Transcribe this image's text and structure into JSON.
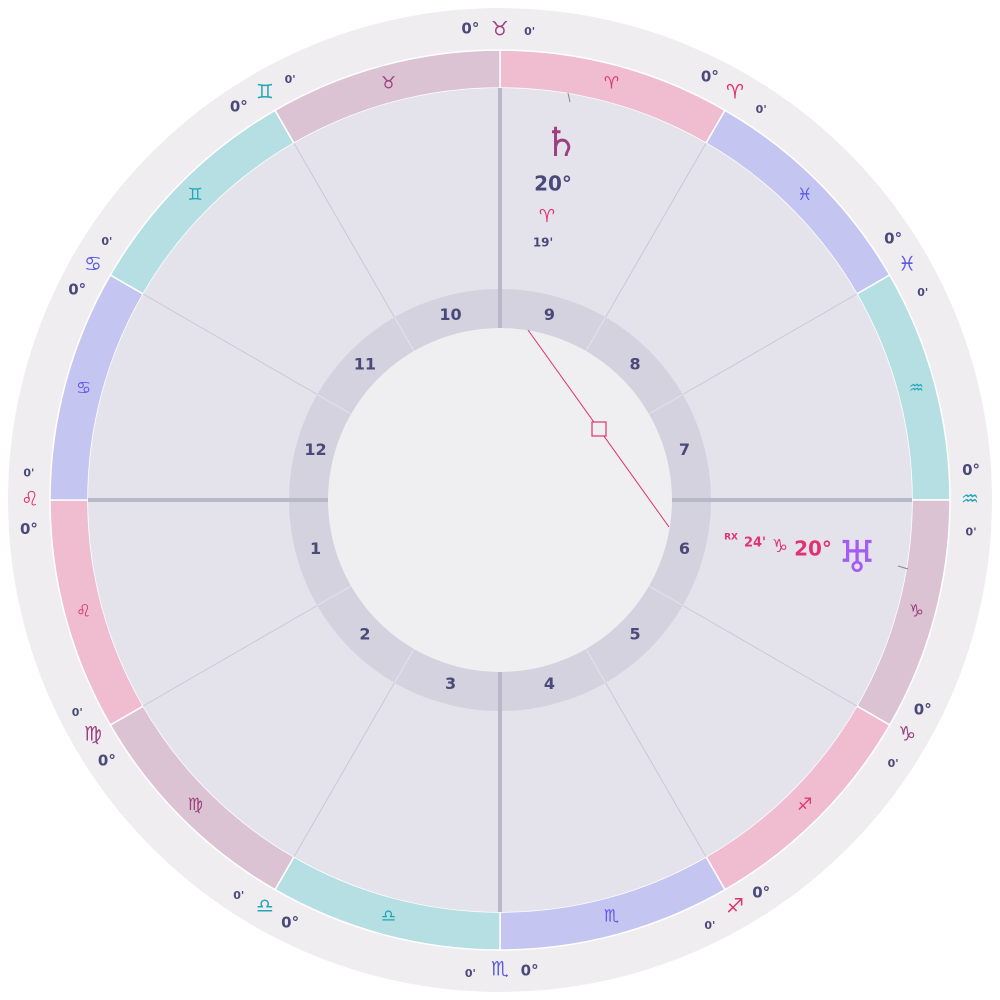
{
  "signs": [
    {
      "glyph": "♈",
      "degree": "0°",
      "minute": "0'"
    },
    {
      "glyph": "♓",
      "degree": "0°",
      "minute": "0'"
    },
    {
      "glyph": "♒",
      "degree": "0°",
      "minute": "0'"
    },
    {
      "glyph": "♑",
      "degree": "0°",
      "minute": "0'"
    },
    {
      "glyph": "♐",
      "degree": "0°",
      "minute": "0'"
    },
    {
      "glyph": "♏",
      "degree": "0°",
      "minute": "0'"
    },
    {
      "glyph": "♎",
      "degree": "0°",
      "minute": "0'"
    },
    {
      "glyph": "♍",
      "degree": "0°",
      "minute": "0'"
    },
    {
      "glyph": "♌",
      "degree": "0°",
      "minute": "0'"
    },
    {
      "glyph": "♋",
      "degree": "0°",
      "minute": "0'"
    },
    {
      "glyph": "♊",
      "degree": "0°",
      "minute": "0'"
    },
    {
      "glyph": "♉",
      "degree": "0°",
      "minute": "0'"
    }
  ],
  "houses": [
    "1",
    "2",
    "3",
    "4",
    "5",
    "6",
    "7",
    "8",
    "9",
    "10",
    "11",
    "12"
  ],
  "planets": [
    {
      "glyph": "♄",
      "degree": "20°",
      "sign": "♈",
      "minute": "19'"
    },
    {
      "glyph": "♅",
      "degree": "20°",
      "sign": "♑",
      "minute": "24'",
      "retrograde": "RX"
    }
  ]
}
